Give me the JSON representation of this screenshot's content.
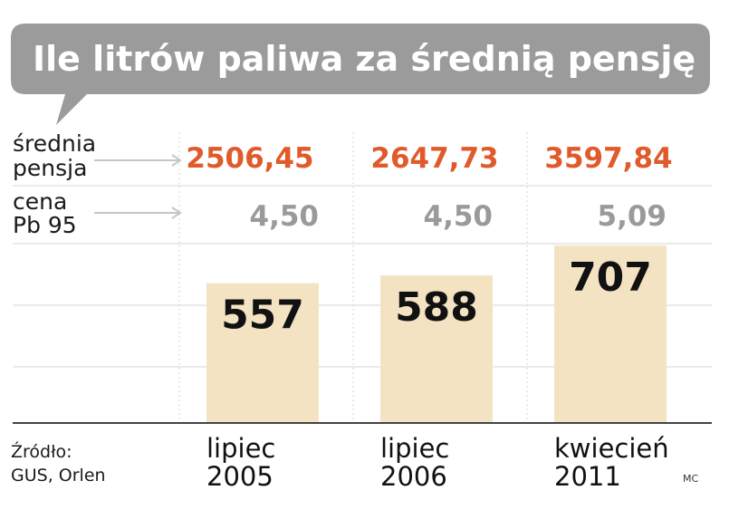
{
  "chart_data": {
    "type": "bar",
    "title": "Ile litrów paliwa za średnią pensję",
    "categories": [
      [
        "lipiec",
        "2005"
      ],
      [
        "lipiec",
        "2006"
      ],
      [
        "kwiecień",
        "2011"
      ]
    ],
    "values": [
      557,
      588,
      707
    ],
    "ylim": [
      0,
      740
    ],
    "grid": true,
    "rows": {
      "wage": {
        "label": [
          "średnia",
          "pensja"
        ],
        "values": [
          "2506,45",
          "2647,73",
          "3597,84"
        ]
      },
      "price": {
        "label": [
          "cena",
          "Pb 95"
        ],
        "values": [
          "4,50",
          "4,50",
          "5,09"
        ]
      }
    },
    "source": [
      "Źródło:",
      "GUS, Orlen"
    ],
    "credit": "MC",
    "colors": {
      "bar": "#f3e3c3",
      "wage": "#e05a2b",
      "price": "#9a9a9a",
      "title_bubble": "#9b9b9b",
      "grid": "#d4d4d4",
      "axis": "#444444",
      "arrow": "#c6c6c6"
    }
  }
}
